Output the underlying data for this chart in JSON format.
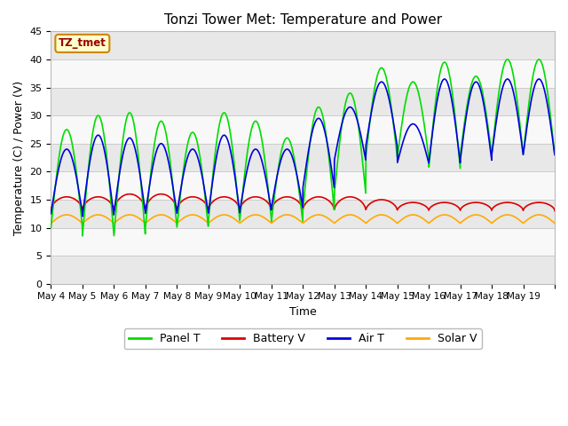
{
  "title": "Tonzi Tower Met: Temperature and Power",
  "xlabel": "Time",
  "ylabel": "Temperature (C) / Power (V)",
  "ylim": [
    0,
    45
  ],
  "yticks": [
    0,
    5,
    10,
    15,
    20,
    25,
    30,
    35,
    40,
    45
  ],
  "legend_labels": [
    "Panel T",
    "Battery V",
    "Air T",
    "Solar V"
  ],
  "legend_colors": [
    "#00dd00",
    "#dd0000",
    "#0000dd",
    "#ffaa00"
  ],
  "text_box_label": "TZ_tmet",
  "text_box_facecolor": "#ffffcc",
  "text_box_edgecolor": "#cc8800",
  "text_box_text_color": "#990000",
  "fig_facecolor": "#ffffff",
  "ax_facecolor": "#ffffff",
  "band_color_dark": "#e8e8e8",
  "band_color_light": "#f8f8f8",
  "grid_color": "#cccccc",
  "n_days": 16,
  "x_tick_labels": [
    "May 4",
    "May 5",
    "May 6",
    "May 7",
    "May 8",
    "May 9",
    "May 10",
    "May 11",
    "May 12",
    "May 13",
    "May 14",
    "May 15",
    "May 16",
    "May 17",
    "May 18",
    "May 19"
  ],
  "panel_T_days": [
    27.5,
    30.0,
    30.5,
    29.0,
    27.0,
    30.5,
    29.0,
    26.0,
    31.5,
    34.0,
    38.5,
    36.0,
    39.5,
    37.0,
    40.0,
    40.0
  ],
  "panel_T_nights": [
    10.0,
    8.5,
    8.5,
    10.0,
    10.0,
    11.0,
    11.5,
    11.0,
    13.0,
    16.0,
    22.5,
    22.5,
    20.5,
    23.0,
    23.0,
    23.0
  ],
  "air_T_days": [
    24.0,
    26.5,
    26.0,
    25.0,
    24.0,
    26.5,
    24.0,
    24.0,
    29.5,
    31.5,
    36.0,
    28.5,
    36.5,
    36.0,
    36.5,
    36.5
  ],
  "air_T_nights": [
    12.5,
    12.0,
    12.5,
    12.5,
    12.5,
    12.5,
    13.0,
    13.5,
    17.0,
    22.0,
    24.5,
    21.5,
    21.5,
    22.0,
    23.0,
    23.0
  ],
  "battery_V_base": 13.0,
  "battery_V_peaks": [
    15.5,
    15.5,
    16.0,
    16.0,
    15.5,
    15.5,
    15.5,
    15.5,
    15.5,
    15.5,
    15.0,
    14.5,
    14.5,
    14.5,
    14.5,
    14.5
  ],
  "solar_V_base": 11.0,
  "solar_V_peaks": [
    12.3,
    12.3,
    12.3,
    12.3,
    12.3,
    12.3,
    12.3,
    12.3,
    12.3,
    12.3,
    12.3,
    12.3,
    12.3,
    12.3,
    12.3,
    12.3
  ],
  "solar_V_night": 10.8
}
